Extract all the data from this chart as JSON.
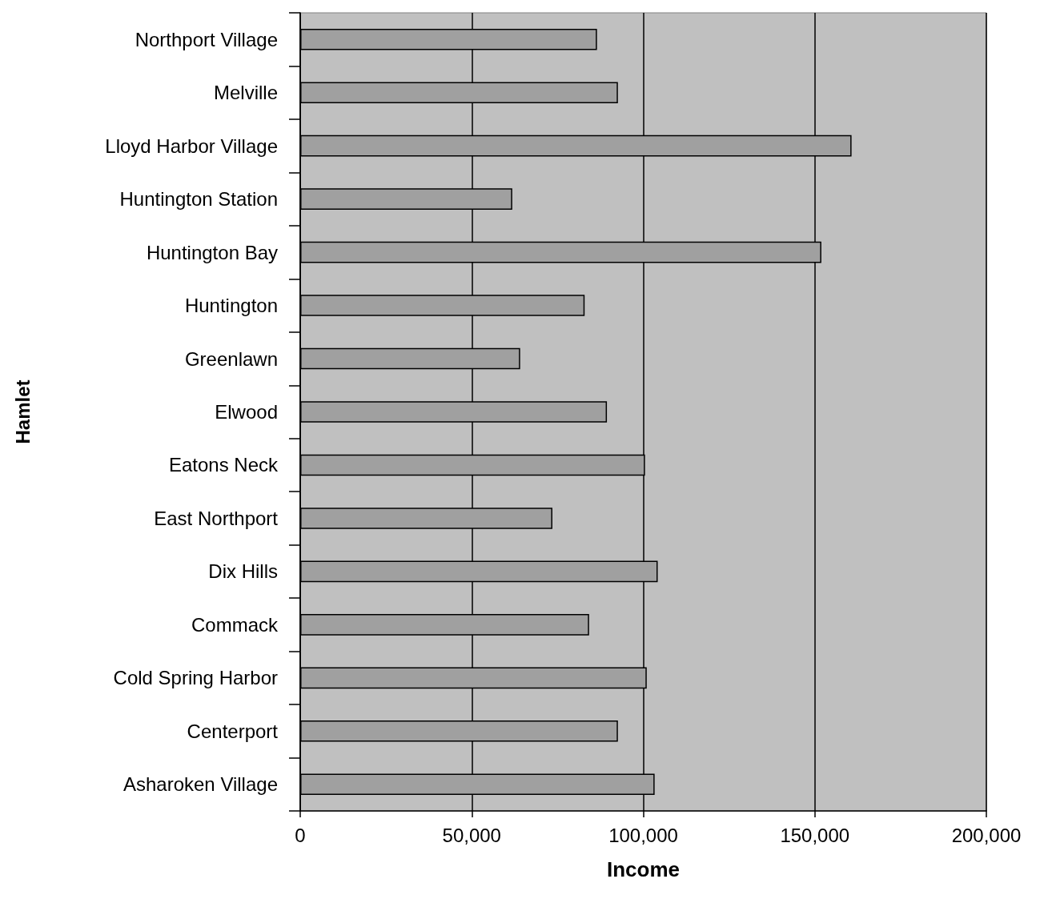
{
  "chart_data": {
    "type": "bar",
    "orientation": "horizontal",
    "xlabel": "Income",
    "ylabel": "Hamlet",
    "categories": [
      "Northport Village",
      "Melville",
      "Lloyd Harbor Village",
      "Huntington Station",
      "Huntington Bay",
      "Huntington",
      "Greenlawn",
      "Elwood",
      "Eatons Neck",
      "East Northport",
      "Dix Hills",
      "Commack",
      "Cold Spring Harbor",
      "Centerport",
      "Asharoken Village"
    ],
    "values": [
      86500,
      92600,
      160700,
      61800,
      151900,
      82900,
      64100,
      89400,
      100500,
      73500,
      104200,
      84200,
      101000,
      92600,
      103300
    ],
    "color": "#a0a0a0",
    "xlim": [
      0,
      200000
    ],
    "xticks": [
      {
        "value": 0,
        "label": "0"
      },
      {
        "value": 50000,
        "label": "50,000"
      },
      {
        "value": 100000,
        "label": "100,000"
      },
      {
        "value": 150000,
        "label": "150,000"
      },
      {
        "value": 200000,
        "label": "200,000"
      }
    ],
    "grid": "x"
  }
}
